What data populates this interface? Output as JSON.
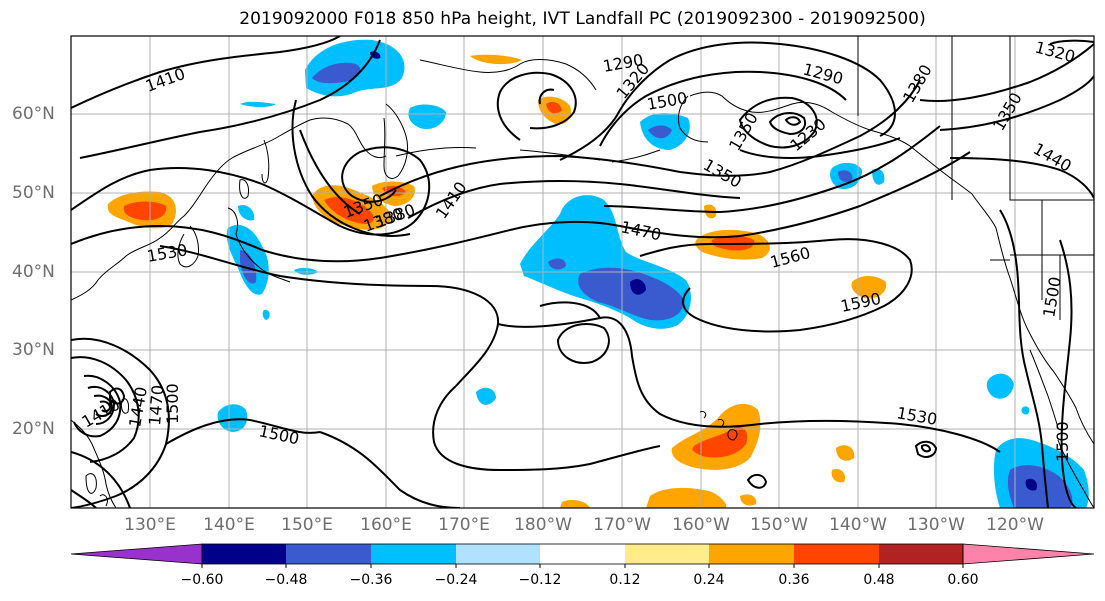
{
  "title": "2019092000 F018 850 hPa height, IVT Landfall PC (2019092300 - 2019092500)",
  "lat_labels": [
    "60°N",
    "50°N",
    "40°N",
    "30°N",
    "20°N"
  ],
  "lon_labels": [
    "130°E",
    "140°E",
    "150°E",
    "160°E",
    "170°E",
    "180°W",
    "170°W",
    "160°W",
    "150°W",
    "140°W",
    "130°W",
    "120°W"
  ],
  "colorbar": {
    "colors": [
      "#9932cc",
      "#00008b",
      "#3a5bcf",
      "#00bfff",
      "#b0e2ff",
      "#ffffff",
      "#ffec8b",
      "#ffa500",
      "#ff4500",
      "#b22222",
      "#ff82ab"
    ],
    "tick_labels": [
      "−0.60",
      "−0.48",
      "−0.36",
      "−0.24",
      "−0.12",
      "0.12",
      "0.24",
      "0.36",
      "0.48",
      "0.60"
    ]
  },
  "contour_labels": [
    "1410",
    "1290",
    "1320",
    "1290",
    "1380",
    "1230",
    "1350",
    "1440",
    "1320",
    "1350",
    "1380",
    "1410",
    "1470",
    "1530",
    "1560",
    "1590",
    "1500",
    "1500",
    "1530",
    "1500",
    "1500",
    "1440",
    "1470",
    "1410",
    "1350",
    "1380",
    "1350",
    "1500"
  ]
}
